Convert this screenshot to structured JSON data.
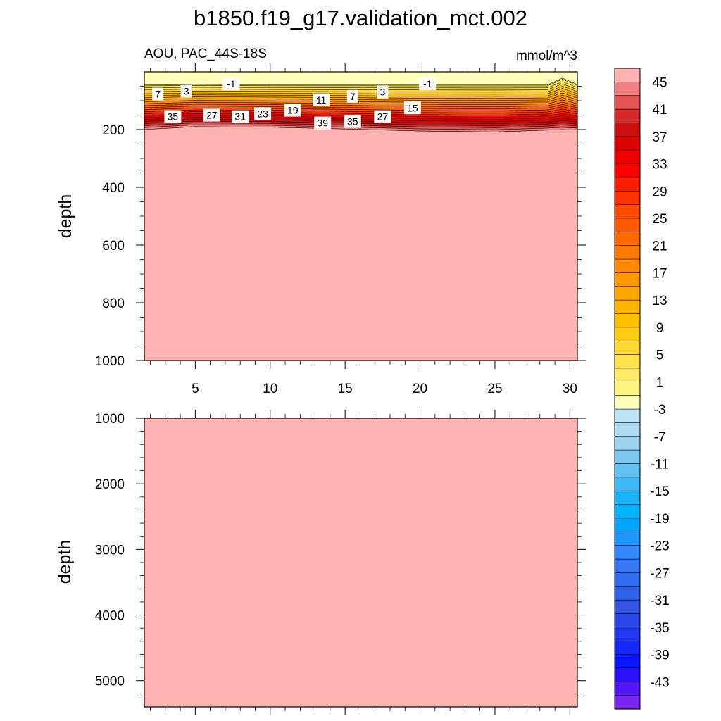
{
  "title": "b1850.f19_g17.validation_mct.002",
  "chart_data": [
    {
      "type": "heatmap",
      "panel": "upper",
      "left_string": "AOU, PAC_44S-18S",
      "right_string": "mmol/m^3",
      "title": "",
      "xlabel": "",
      "ylabel": "depth",
      "xlim": [
        1.6,
        30.5
      ],
      "ylim": [
        0,
        1000
      ],
      "y_reversed": true,
      "grid": false,
      "x_ticks": [
        5,
        10,
        15,
        20,
        25,
        30
      ],
      "y_ticks": [
        200,
        400,
        600,
        800,
        1000
      ],
      "field": {
        "x": [
          1.6,
          5,
          10,
          15,
          20,
          25,
          28.5,
          29.5,
          30.5
        ],
        "isolines": [
          {
            "value": 0,
            "depth": [
              45,
              44,
              45,
              45,
              45,
              45,
              45,
              22,
              44
            ]
          },
          {
            "value": 45,
            "depth": [
              200,
              190,
              192,
              198,
              205,
              208,
              202,
              200,
              202
            ]
          }
        ],
        "above_field_value": -1,
        "below_field_value": 45
      },
      "contour_labels": [
        {
          "text": "7",
          "x": 2.5,
          "depth": 77
        },
        {
          "text": "3",
          "x": 4.4,
          "depth": 67
        },
        {
          "text": "-1",
          "x": 7.4,
          "depth": 42
        },
        {
          "text": "35",
          "x": 3.5,
          "depth": 155
        },
        {
          "text": "27",
          "x": 6.1,
          "depth": 150
        },
        {
          "text": "31",
          "x": 8.0,
          "depth": 155
        },
        {
          "text": "23",
          "x": 9.5,
          "depth": 145
        },
        {
          "text": "19",
          "x": 11.5,
          "depth": 133
        },
        {
          "text": "11",
          "x": 13.4,
          "depth": 97
        },
        {
          "text": "39",
          "x": 13.5,
          "depth": 177
        },
        {
          "text": "7",
          "x": 15.5,
          "depth": 85
        },
        {
          "text": "35",
          "x": 15.5,
          "depth": 172
        },
        {
          "text": "3",
          "x": 17.5,
          "depth": 70
        },
        {
          "text": "27",
          "x": 17.5,
          "depth": 155
        },
        {
          "text": "15",
          "x": 19.5,
          "depth": 125
        },
        {
          "text": "-1",
          "x": 20.5,
          "depth": 42
        }
      ]
    },
    {
      "type": "heatmap",
      "panel": "lower",
      "title": "",
      "xlabel": "",
      "ylabel": "depth",
      "xlim": [
        1.6,
        30.5
      ],
      "ylim": [
        1000,
        5400
      ],
      "y_reversed": true,
      "grid": false,
      "y_ticks": [
        1000,
        2000,
        3000,
        4000,
        5000
      ],
      "field_value": 45
    }
  ],
  "colorbar": {
    "ticklabels": [
      "45",
      "41",
      "37",
      "33",
      "29",
      "25",
      "21",
      "17",
      "13",
      "9",
      "5",
      "1",
      "-3",
      "-7",
      "-11",
      "-15",
      "-19",
      "-23",
      "-27",
      "-31",
      "-35",
      "-39",
      "-43"
    ],
    "levels_top_to_bottom": [
      47,
      45,
      43,
      41,
      39,
      37,
      35,
      33,
      31,
      29,
      27,
      25,
      23,
      21,
      19,
      17,
      15,
      13,
      11,
      9,
      7,
      5,
      3,
      1,
      -1,
      -3,
      -5,
      -7,
      -9,
      -11,
      -13,
      -15,
      -17,
      -19,
      -21,
      -23,
      -25,
      -27,
      -29,
      -31,
      -33,
      -35,
      -37,
      -39,
      -41,
      -43,
      -45
    ],
    "colors_top_to_bottom": [
      "#fdb2b2",
      "#f08080",
      "#e35454",
      "#d42a2a",
      "#cc1010",
      "#dd0000",
      "#ee0000",
      "#ff0000",
      "#ff1e00",
      "#ff3300",
      "#ff4a00",
      "#ff5a00",
      "#ff6a00",
      "#ff7a00",
      "#ff8a00",
      "#ff9900",
      "#ffa800",
      "#ffb400",
      "#ffc000",
      "#ffcc10",
      "#ffd830",
      "#ffe24c",
      "#ffeb66",
      "#fff380",
      "#ffffbb",
      "#bde4f4",
      "#aedbf0",
      "#9cd3ef",
      "#7fc8f2",
      "#63c0f2",
      "#40b8f5",
      "#1ab2f8",
      "#00b6ff",
      "#00a6ff",
      "#1e96ff",
      "#3488ff",
      "#3478f5",
      "#306cee",
      "#2e62e8",
      "#3356e0",
      "#2a48e8",
      "#2238f0",
      "#1628f8",
      "#0a18ff",
      "#2a10ff",
      "#5018f8",
      "#7a26f0"
    ]
  }
}
